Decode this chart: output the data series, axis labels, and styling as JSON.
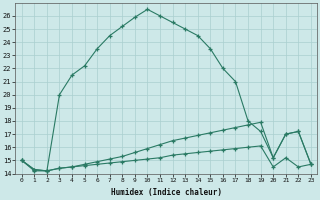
{
  "xlabel": "Humidex (Indice chaleur)",
  "x": [
    0,
    1,
    2,
    3,
    4,
    5,
    6,
    7,
    8,
    9,
    10,
    11,
    12,
    13,
    14,
    15,
    16,
    17,
    18,
    19,
    20,
    21,
    22,
    23
  ],
  "humidex": [
    15,
    14.2,
    14.2,
    20.0,
    21.5,
    22.2,
    23.5,
    24.5,
    25.2,
    25.9,
    26.5,
    26.0,
    25.5,
    25.0,
    24.5,
    23.5,
    22.0,
    21.0,
    18.0,
    17.2,
    15.2,
    17.0,
    17.2,
    14.7
  ],
  "line2": [
    15,
    14.3,
    14.2,
    14.4,
    14.5,
    14.7,
    14.9,
    15.1,
    15.3,
    15.6,
    15.9,
    16.2,
    16.5,
    16.7,
    16.9,
    17.1,
    17.3,
    17.5,
    17.7,
    17.9,
    15.2,
    17.0,
    17.2,
    14.7
  ],
  "line1": [
    15,
    14.3,
    14.2,
    14.4,
    14.5,
    14.6,
    14.7,
    14.8,
    14.9,
    15.0,
    15.1,
    15.2,
    15.4,
    15.5,
    15.6,
    15.7,
    15.8,
    15.9,
    16.0,
    16.1,
    14.5,
    15.2,
    14.5,
    14.7
  ],
  "line_color": "#2a7a64",
  "bg_color": "#cde8e8",
  "grid_color": "#aacfcf",
  "ylim": [
    14,
    27
  ],
  "yticks": [
    14,
    15,
    16,
    17,
    18,
    19,
    20,
    21,
    22,
    23,
    24,
    25,
    26
  ],
  "xlim": [
    -0.5,
    23.5
  ]
}
